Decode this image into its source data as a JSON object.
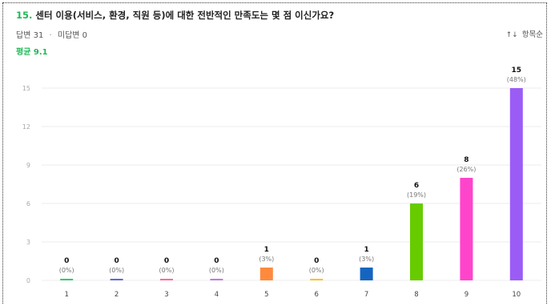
{
  "question": {
    "number": "15.",
    "text": "센터 이용(서비스, 환경, 직원 등)에 대한 전반적인 만족도는 몇 점 이신가요?"
  },
  "meta": {
    "answered": "답변 31",
    "separator": "·",
    "unanswered": "미답변 0"
  },
  "average": "평균 9.1",
  "sort": {
    "icon": "sort-arrows-icon",
    "label": "항목순"
  },
  "colors": {
    "accent": "#1db954",
    "bars": [
      "#2ecc71",
      "#5b6bd5",
      "#ff6b9a",
      "#c27be0",
      "#ff8a3d",
      "#ffc21a",
      "#1565c0",
      "#66cc00",
      "#ff44cc",
      "#9b5cf6"
    ]
  },
  "chart_data": {
    "type": "bar",
    "categories": [
      "1",
      "2",
      "3",
      "4",
      "5",
      "6",
      "7",
      "8",
      "9",
      "10"
    ],
    "values": [
      0,
      0,
      0,
      0,
      1,
      0,
      1,
      6,
      8,
      15
    ],
    "value_labels": [
      "0",
      "0",
      "0",
      "0",
      "1",
      "0",
      "1",
      "6",
      "8",
      "15"
    ],
    "percent_labels": [
      "(0%)",
      "(0%)",
      "(0%)",
      "(0%)",
      "(3%)",
      "(0%)",
      "(3%)",
      "(19%)",
      "(26%)",
      "(48%)"
    ],
    "yticks": [
      0,
      3,
      6,
      9,
      12,
      15
    ],
    "ytick_labels": [
      "0",
      "3",
      "6",
      "9",
      "12",
      "15"
    ],
    "ylim": [
      0,
      15
    ],
    "grid": true
  }
}
